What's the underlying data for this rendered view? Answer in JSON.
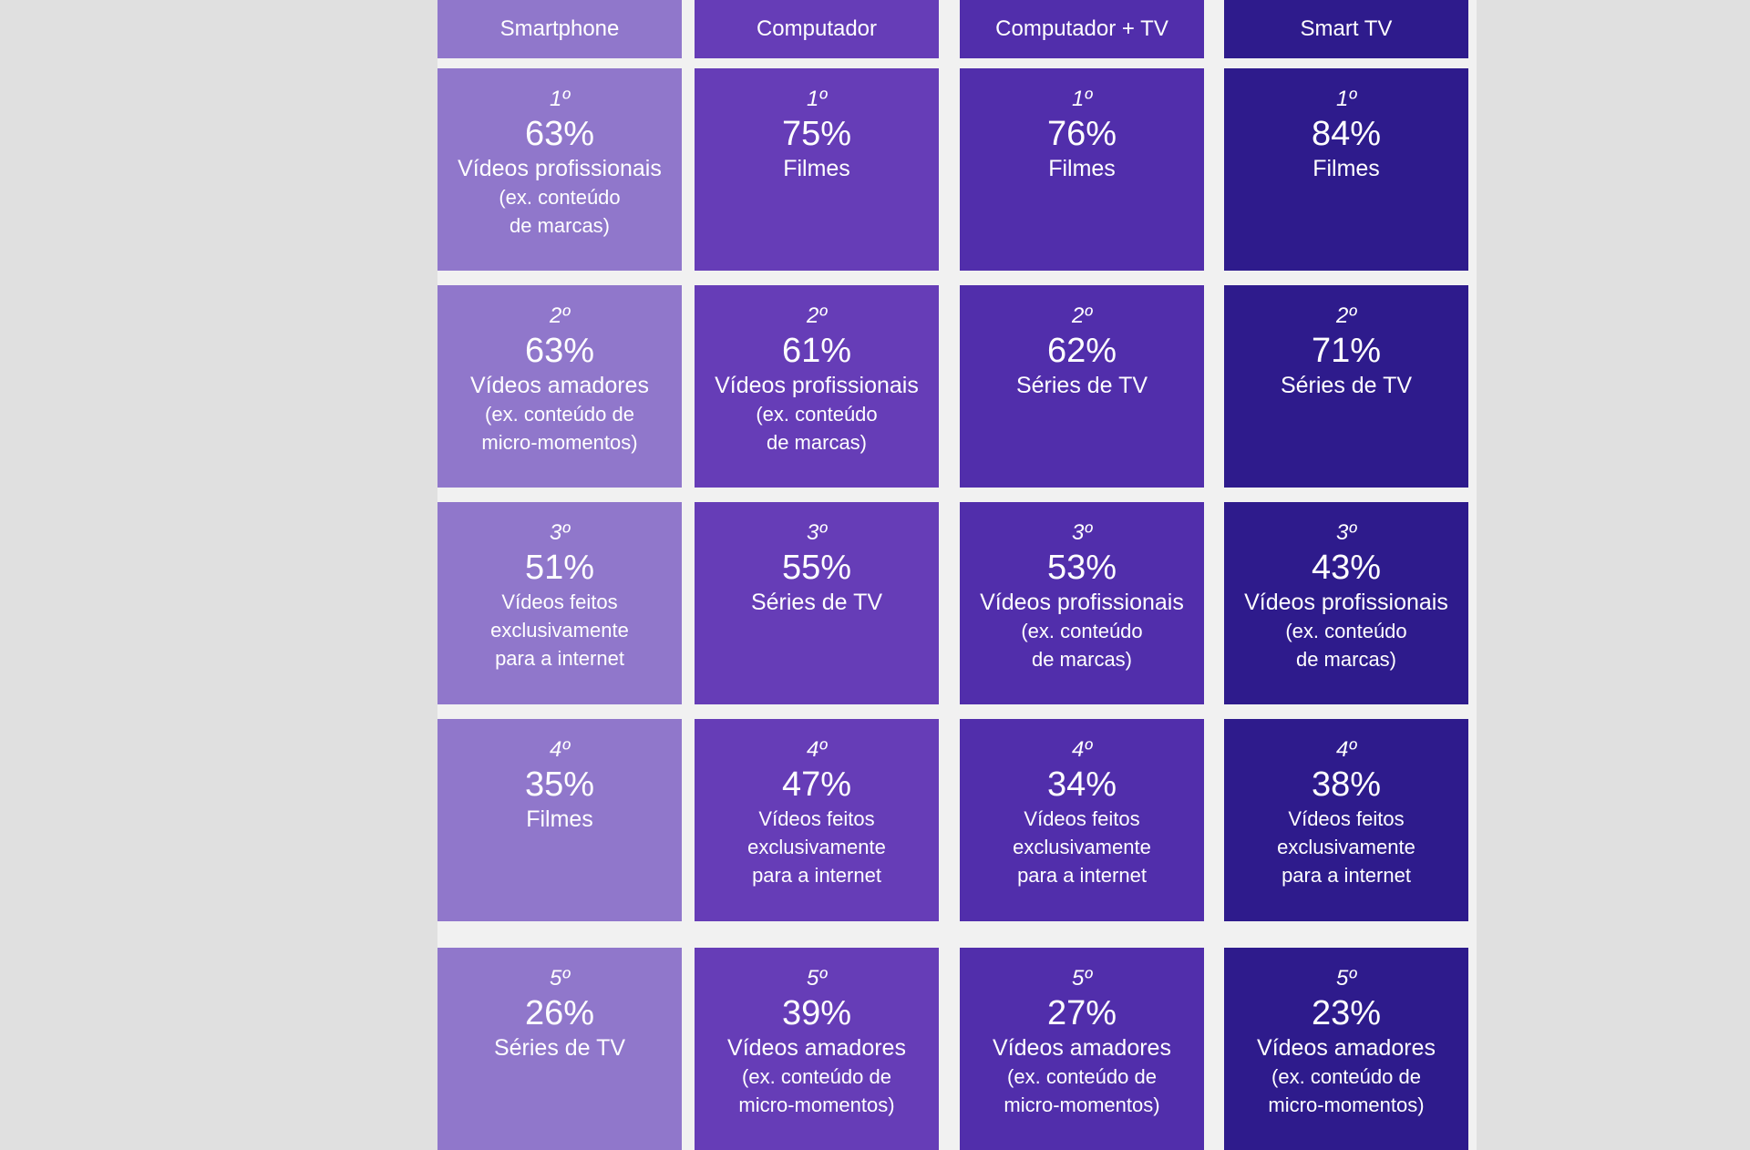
{
  "columns": [
    {
      "header": "Smartphone",
      "color": "#9077cb",
      "cells": [
        {
          "rank": "1º",
          "percent": "63%",
          "label": "Vídeos profissionais",
          "sub": "(ex. conteúdo\nde marcas)"
        },
        {
          "rank": "2º",
          "percent": "63%",
          "label": "Vídeos amadores",
          "sub": "(ex. conteúdo de\nmicro-momentos)"
        },
        {
          "rank": "3º",
          "percent": "51%",
          "label": "",
          "sub": "Vídeos feitos\nexclusivamente\npara a internet"
        },
        {
          "rank": "4º",
          "percent": "35%",
          "label": "Filmes",
          "sub": ""
        },
        {
          "rank": "5º",
          "percent": "26%",
          "label": "Séries de TV",
          "sub": ""
        }
      ]
    },
    {
      "header": "Computador",
      "color": "#663db7",
      "cells": [
        {
          "rank": "1º",
          "percent": "75%",
          "label": "Filmes",
          "sub": ""
        },
        {
          "rank": "2º",
          "percent": "61%",
          "label": "Vídeos profissionais",
          "sub": "(ex. conteúdo\nde marcas)"
        },
        {
          "rank": "3º",
          "percent": "55%",
          "label": "Séries de TV",
          "sub": ""
        },
        {
          "rank": "4º",
          "percent": "47%",
          "label": "",
          "sub": "Vídeos feitos\nexclusivamente\npara a internet"
        },
        {
          "rank": "5º",
          "percent": "39%",
          "label": "Vídeos amadores",
          "sub": "(ex. conteúdo de\nmicro-momentos)"
        }
      ]
    },
    {
      "header": "Computador + TV",
      "color": "#512eab",
      "cells": [
        {
          "rank": "1º",
          "percent": "76%",
          "label": "Filmes",
          "sub": ""
        },
        {
          "rank": "2º",
          "percent": "62%",
          "label": "Séries de TV",
          "sub": ""
        },
        {
          "rank": "3º",
          "percent": "53%",
          "label": "Vídeos profissionais",
          "sub": "(ex. conteúdo\nde marcas)"
        },
        {
          "rank": "4º",
          "percent": "34%",
          "label": "",
          "sub": "Vídeos feitos\nexclusivamente\npara a internet"
        },
        {
          "rank": "5º",
          "percent": "27%",
          "label": "Vídeos amadores",
          "sub": "(ex. conteúdo de\nmicro-momentos)"
        }
      ]
    },
    {
      "header": "Smart TV",
      "color": "#2e1b8c",
      "cells": [
        {
          "rank": "1º",
          "percent": "84%",
          "label": "Filmes",
          "sub": ""
        },
        {
          "rank": "2º",
          "percent": "71%",
          "label": "Séries de TV",
          "sub": ""
        },
        {
          "rank": "3º",
          "percent": "43%",
          "label": "Vídeos profissionais",
          "sub": "(ex. conteúdo\nde marcas)"
        },
        {
          "rank": "4º",
          "percent": "38%",
          "label": "",
          "sub": "Vídeos feitos\nexclusivamente\npara a internet"
        },
        {
          "rank": "5º",
          "percent": "23%",
          "label": "Vídeos amadores",
          "sub": "(ex. conteúdo de\nmicro-momentos)"
        }
      ]
    }
  ]
}
